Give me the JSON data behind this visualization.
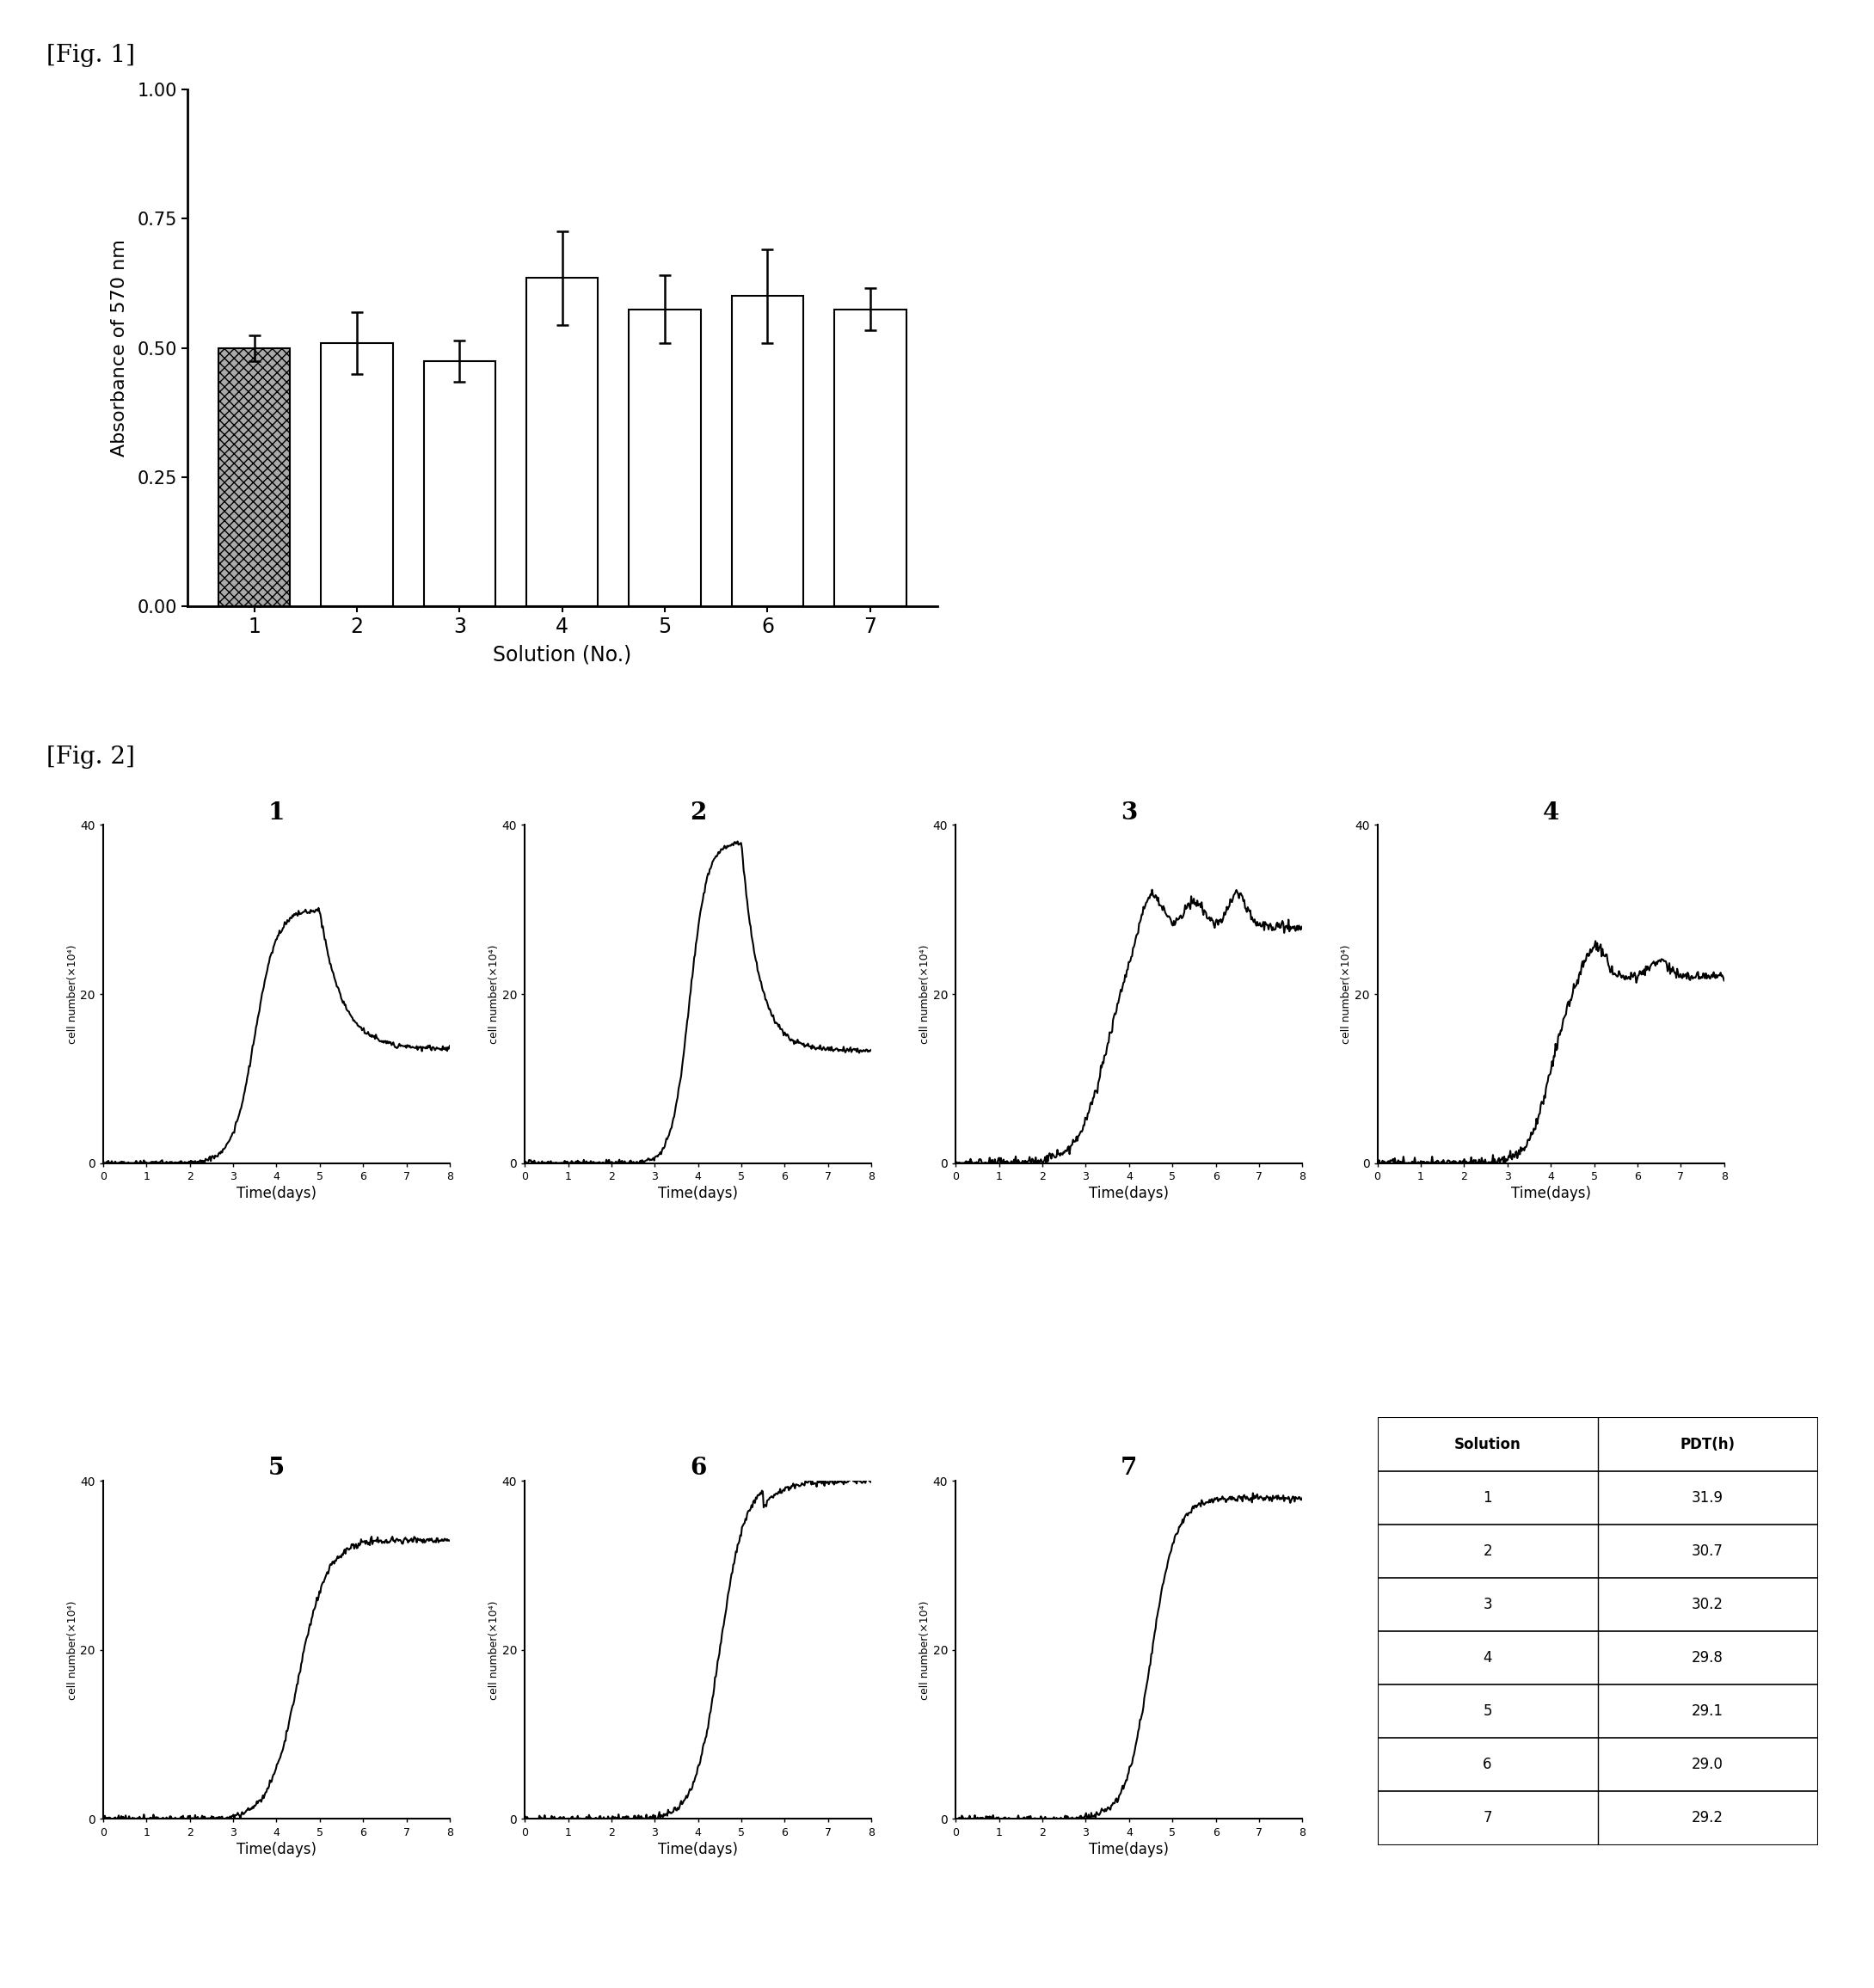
{
  "fig1_title": "[Fig. 1]",
  "fig2_title": "[Fig. 2]",
  "bar_values": [
    0.5,
    0.51,
    0.475,
    0.635,
    0.575,
    0.6,
    0.575
  ],
  "bar_errors": [
    0.025,
    0.06,
    0.04,
    0.09,
    0.065,
    0.09,
    0.04
  ],
  "bar_labels": [
    "1",
    "2",
    "3",
    "4",
    "5",
    "6",
    "7"
  ],
  "bar_colors": [
    "#aaaaaa",
    "#ffffff",
    "#ffffff",
    "#ffffff",
    "#ffffff",
    "#ffffff",
    "#ffffff"
  ],
  "bar_hatch": [
    "xxx",
    "",
    "",
    "",
    "",
    "",
    ""
  ],
  "bar_edgecolor": "#000000",
  "ylabel_fig1": "Absorbance of 570 nm",
  "xlabel_fig1": "Solution (No.)",
  "ylim_fig1": [
    0.0,
    1.0
  ],
  "yticks_fig1": [
    0.0,
    0.25,
    0.5,
    0.75,
    1.0
  ],
  "table_solutions": [
    1,
    2,
    3,
    4,
    5,
    6,
    7
  ],
  "table_pdt": [
    "31.9",
    "30.7",
    "30.2",
    "29.8",
    "29.1",
    "29.0",
    "29.2"
  ],
  "growth_curve_titles": [
    "1",
    "2",
    "3",
    "4",
    "5",
    "6",
    "7"
  ],
  "ylabel_fig2": "cell number(×10⁴)",
  "xlabel_fig2": "Time(days)",
  "ylim_fig2": [
    0,
    40
  ],
  "yticks_fig2": [
    0,
    20,
    40
  ],
  "xticks_fig2": [
    0,
    1,
    2,
    3,
    4,
    5,
    6,
    7,
    8
  ]
}
